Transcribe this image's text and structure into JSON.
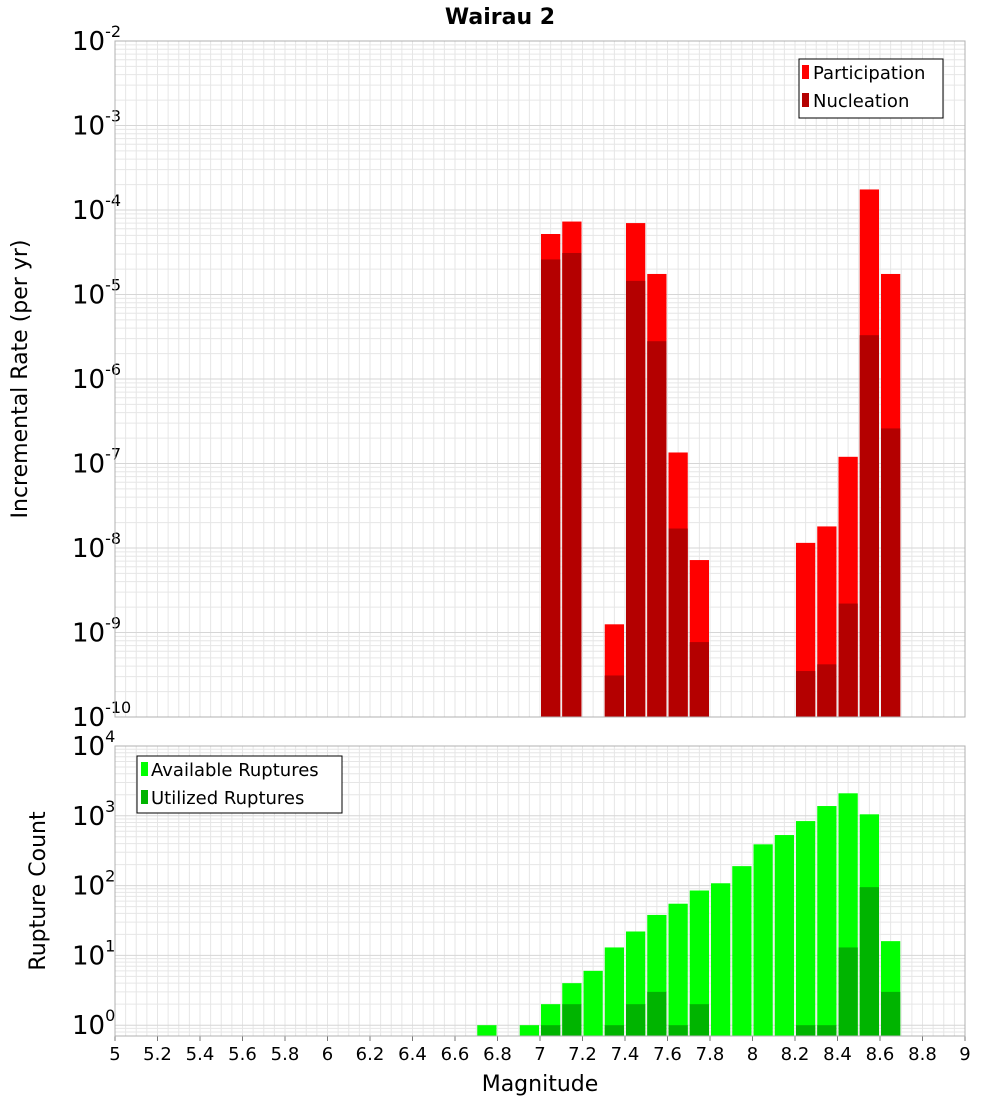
{
  "title": "Wairau 2",
  "colors": {
    "participation": "#ff0000",
    "nucleation": "#b40000",
    "available": "#00ff00",
    "utilized": "#00b400",
    "grid": "#e6e6e6",
    "frame": "#b0b0b0"
  },
  "chart_data": [
    {
      "type": "bar",
      "scale": "log",
      "ylabel": "Incremental Rate (per yr)",
      "ylim": [
        1e-10,
        0.01
      ],
      "xlim": [
        5,
        9
      ],
      "grid": true,
      "legend_position": "top-right",
      "y_tick_exponents": [
        "-2",
        "-3",
        "-4",
        "-5",
        "-6",
        "-7",
        "-8",
        "-9",
        "-10"
      ],
      "y_tick_base": "10",
      "series": [
        {
          "name": "Participation",
          "points": [
            {
              "x": 7.05,
              "y": 5.2e-05
            },
            {
              "x": 7.15,
              "y": 7.3e-05
            },
            {
              "x": 7.35,
              "y": 1.25e-09
            },
            {
              "x": 7.45,
              "y": 7e-05
            },
            {
              "x": 7.55,
              "y": 1.75e-05
            },
            {
              "x": 7.65,
              "y": 1.35e-07
            },
            {
              "x": 7.75,
              "y": 7.2e-09
            },
            {
              "x": 8.25,
              "y": 1.15e-08
            },
            {
              "x": 8.35,
              "y": 1.8e-08
            },
            {
              "x": 8.45,
              "y": 1.2e-07
            },
            {
              "x": 8.55,
              "y": 0.000175
            },
            {
              "x": 8.65,
              "y": 1.75e-05
            }
          ]
        },
        {
          "name": "Nucleation",
          "points": [
            {
              "x": 7.05,
              "y": 2.6e-05
            },
            {
              "x": 7.15,
              "y": 3.1e-05
            },
            {
              "x": 7.35,
              "y": 3.1e-10
            },
            {
              "x": 7.45,
              "y": 1.45e-05
            },
            {
              "x": 7.55,
              "y": 2.8e-06
            },
            {
              "x": 7.65,
              "y": 1.7e-08
            },
            {
              "x": 7.75,
              "y": 7.7e-10
            },
            {
              "x": 8.25,
              "y": 3.5e-10
            },
            {
              "x": 8.35,
              "y": 4.2e-10
            },
            {
              "x": 8.45,
              "y": 2.2e-09
            },
            {
              "x": 8.55,
              "y": 3.3e-06
            },
            {
              "x": 8.65,
              "y": 2.6e-07
            }
          ]
        }
      ]
    },
    {
      "type": "bar",
      "scale": "log",
      "xlabel": "Magnitude",
      "ylabel": "Rupture Count",
      "ylim": [
        0.7,
        10000
      ],
      "xlim": [
        5,
        9
      ],
      "grid": true,
      "legend_position": "top-left",
      "y_tick_exponents": [
        "4",
        "3",
        "2",
        "1",
        "0"
      ],
      "y_tick_base": "10",
      "x_ticks": [
        "5",
        "5.2",
        "5.4",
        "5.6",
        "5.8",
        "6",
        "6.2",
        "6.4",
        "6.6",
        "6.8",
        "7",
        "7.2",
        "7.4",
        "7.6",
        "7.8",
        "8",
        "8.2",
        "8.4",
        "8.6",
        "8.8",
        "9"
      ],
      "series": [
        {
          "name": "Available Ruptures",
          "points": [
            {
              "x": 6.75,
              "y": 1
            },
            {
              "x": 6.95,
              "y": 1
            },
            {
              "x": 7.05,
              "y": 2
            },
            {
              "x": 7.15,
              "y": 4
            },
            {
              "x": 7.25,
              "y": 6
            },
            {
              "x": 7.35,
              "y": 13
            },
            {
              "x": 7.45,
              "y": 22
            },
            {
              "x": 7.55,
              "y": 38
            },
            {
              "x": 7.65,
              "y": 55
            },
            {
              "x": 7.75,
              "y": 85
            },
            {
              "x": 7.85,
              "y": 108
            },
            {
              "x": 7.95,
              "y": 190
            },
            {
              "x": 8.05,
              "y": 390
            },
            {
              "x": 8.15,
              "y": 530
            },
            {
              "x": 8.25,
              "y": 840
            },
            {
              "x": 8.35,
              "y": 1380
            },
            {
              "x": 8.45,
              "y": 2100
            },
            {
              "x": 8.55,
              "y": 1050
            },
            {
              "x": 8.65,
              "y": 16
            }
          ]
        },
        {
          "name": "Utilized Ruptures",
          "points": [
            {
              "x": 7.05,
              "y": 1
            },
            {
              "x": 7.15,
              "y": 2
            },
            {
              "x": 7.35,
              "y": 1
            },
            {
              "x": 7.45,
              "y": 2
            },
            {
              "x": 7.55,
              "y": 3
            },
            {
              "x": 7.65,
              "y": 1
            },
            {
              "x": 7.75,
              "y": 2
            },
            {
              "x": 8.25,
              "y": 1
            },
            {
              "x": 8.35,
              "y": 1
            },
            {
              "x": 8.45,
              "y": 13
            },
            {
              "x": 8.55,
              "y": 95
            },
            {
              "x": 8.65,
              "y": 3
            }
          ]
        }
      ]
    }
  ]
}
